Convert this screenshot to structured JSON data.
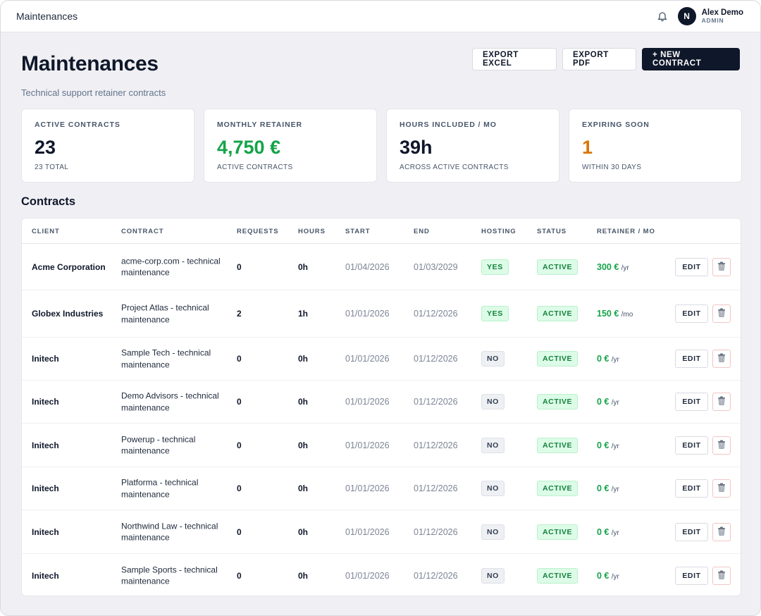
{
  "topbar": {
    "title": "Maintenances",
    "user_initial": "N",
    "user_name": "Alex Demo",
    "user_role": "ADMIN",
    "bell_icon": "bell-icon"
  },
  "header": {
    "title": "Maintenances",
    "subtitle": "Technical support retainer contracts"
  },
  "actions": {
    "export_excel": "EXPORT EXCEL",
    "export_pdf": "EXPORT PDF",
    "new_contract": "+ NEW CONTRACT"
  },
  "stats": [
    {
      "label": "ACTIVE CONTRACTS",
      "value": "23",
      "sub": "23 TOTAL",
      "color": "#0f172a"
    },
    {
      "label": "MONTHLY RETAINER",
      "value": "4,750 €",
      "sub": "ACTIVE CONTRACTS",
      "color": "#16a34a"
    },
    {
      "label": "HOURS INCLUDED / MO",
      "value": "39h",
      "sub": "ACROSS ACTIVE CONTRACTS",
      "color": "#0f172a"
    },
    {
      "label": "EXPIRING SOON",
      "value": "1",
      "sub": "WITHIN 30 DAYS",
      "color": "#d97706"
    }
  ],
  "contracts": {
    "title": "Contracts",
    "columns": {
      "client": "CLIENT",
      "contract": "CONTRACT",
      "requests": "REQUESTS",
      "hours": "HOURS",
      "start": "START",
      "end": "END",
      "hosting": "HOSTING",
      "status": "STATUS",
      "retainer": "RETAINER / MO"
    },
    "edit_label": "EDIT",
    "rows": [
      {
        "client": "Acme Corporation",
        "contract": "acme-corp.com - technical maintenance",
        "requests": "0",
        "hours": "0h",
        "start": "01/04/2026",
        "end": "01/03/2029",
        "hosting": "YES",
        "status": "ACTIVE",
        "retainer": "300 €",
        "unit": "/yr"
      },
      {
        "client": "Globex Industries",
        "contract": "Project Atlas - technical maintenance",
        "requests": "2",
        "hours": "1h",
        "start": "01/01/2026",
        "end": "01/12/2026",
        "hosting": "YES",
        "status": "ACTIVE",
        "retainer": "150 €",
        "unit": "/mo"
      },
      {
        "client": "Initech",
        "contract": "Sample Tech - technical maintenance",
        "requests": "0",
        "hours": "0h",
        "start": "01/01/2026",
        "end": "01/12/2026",
        "hosting": "NO",
        "status": "ACTIVE",
        "retainer": "0 €",
        "unit": "/yr"
      },
      {
        "client": "Initech",
        "contract": "Demo Advisors - technical maintenance",
        "requests": "0",
        "hours": "0h",
        "start": "01/01/2026",
        "end": "01/12/2026",
        "hosting": "NO",
        "status": "ACTIVE",
        "retainer": "0 €",
        "unit": "/yr"
      },
      {
        "client": "Initech",
        "contract": "Powerup - technical maintenance",
        "requests": "0",
        "hours": "0h",
        "start": "01/01/2026",
        "end": "01/12/2026",
        "hosting": "NO",
        "status": "ACTIVE",
        "retainer": "0 €",
        "unit": "/yr"
      },
      {
        "client": "Initech",
        "contract": "Platforma - technical maintenance",
        "requests": "0",
        "hours": "0h",
        "start": "01/01/2026",
        "end": "01/12/2026",
        "hosting": "NO",
        "status": "ACTIVE",
        "retainer": "0 €",
        "unit": "/yr"
      },
      {
        "client": "Initech",
        "contract": "Northwind Law - technical maintenance",
        "requests": "0",
        "hours": "0h",
        "start": "01/01/2026",
        "end": "01/12/2026",
        "hosting": "NO",
        "status": "ACTIVE",
        "retainer": "0 €",
        "unit": "/yr"
      },
      {
        "client": "Initech",
        "contract": "Sample Sports - technical maintenance",
        "requests": "0",
        "hours": "0h",
        "start": "01/01/2026",
        "end": "01/12/2026",
        "hosting": "NO",
        "status": "ACTIVE",
        "retainer": "0 €",
        "unit": "/yr"
      }
    ]
  }
}
